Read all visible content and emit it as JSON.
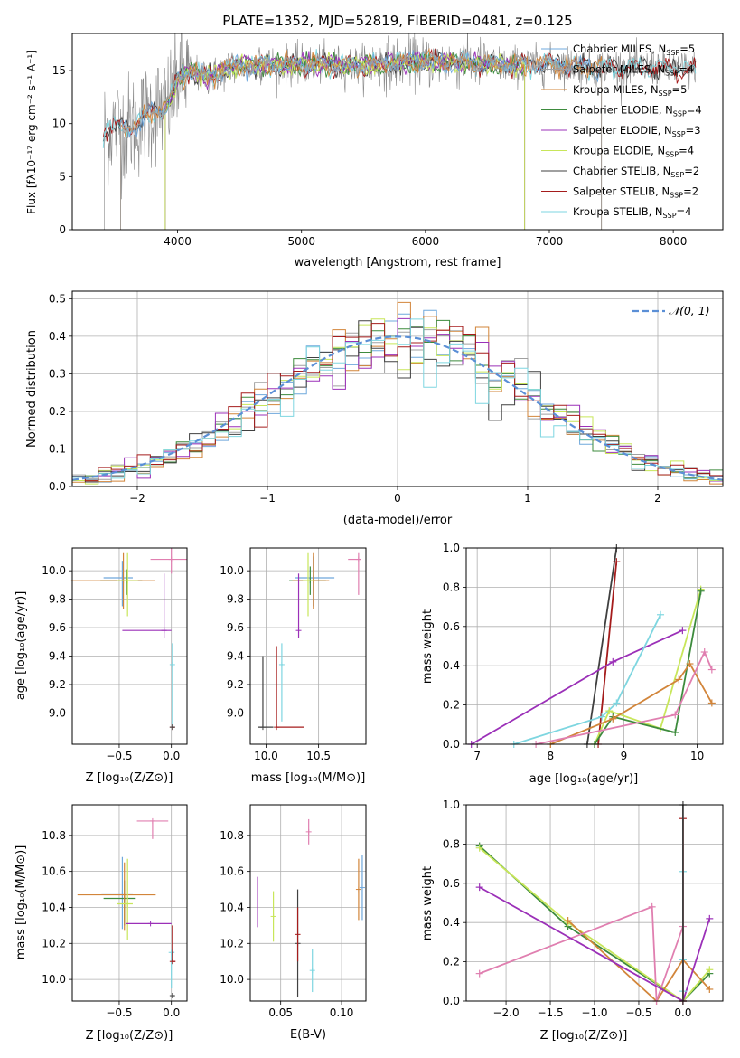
{
  "figure": {
    "title": "PLATE=1352, MJD=52819, FIBERID=0481, z=0.125"
  },
  "colors": {
    "model_series": [
      "#6fa8dc",
      "#a0a0a0",
      "#d2853a",
      "#3d8b3d",
      "#9b30b8",
      "#c8e65a",
      "#404040",
      "#a51c1c",
      "#7ed6e0"
    ],
    "pink": "#e07fb0",
    "data_gray": "#888888",
    "normal_curve": "#5b8fd6"
  },
  "chart_data": [
    {
      "id": "spectrum",
      "type": "line",
      "xlabel": "wavelength [Angstrom, rest frame]",
      "ylabel": "Flux [fλ10⁻¹⁷ erg cm⁻² s⁻¹ A⁻¹]",
      "xlim": [
        3150,
        8400
      ],
      "ylim": [
        0,
        18.5
      ],
      "xticks": [
        4000,
        5000,
        6000,
        7000,
        8000
      ],
      "yticks": [
        0,
        5,
        10,
        15
      ],
      "legend_position": "top-right",
      "data_range": [
        3400,
        8180
      ],
      "anchors": [
        [
          3400,
          9.3
        ],
        [
          3500,
          9.8
        ],
        [
          3600,
          9.6
        ],
        [
          3700,
          10.2
        ],
        [
          3800,
          11.2
        ],
        [
          3900,
          11.5
        ],
        [
          3950,
          12.5
        ],
        [
          4000,
          14.2
        ],
        [
          4100,
          15.0
        ],
        [
          4200,
          14.5
        ],
        [
          4300,
          14.5
        ],
        [
          4400,
          15.2
        ],
        [
          4500,
          15.4
        ],
        [
          4700,
          15.6
        ],
        [
          4900,
          15.5
        ],
        [
          5100,
          15.6
        ],
        [
          5300,
          15.5
        ],
        [
          5600,
          15.6
        ],
        [
          5900,
          15.8
        ],
        [
          6200,
          15.8
        ],
        [
          6500,
          15.6
        ],
        [
          6800,
          15.5
        ],
        [
          7100,
          15.6
        ],
        [
          7400,
          15.3
        ],
        [
          7700,
          15.3
        ],
        [
          8000,
          15.2
        ],
        [
          8180,
          15.1
        ]
      ],
      "legend": [
        {
          "label": "Chabrier MILES, N",
          "sub": "SSP",
          "suffix": "=5"
        },
        {
          "label": "Salpeter MILES, N",
          "sub": "SSP",
          "suffix": "=4"
        },
        {
          "label": "Kroupa MILES, N",
          "sub": "SSP",
          "suffix": "=5"
        },
        {
          "label": "Chabrier ELODIE, N",
          "sub": "SSP",
          "suffix": "=4"
        },
        {
          "label": "Salpeter ELODIE, N",
          "sub": "SSP",
          "suffix": "=3"
        },
        {
          "label": "Kroupa ELODIE, N",
          "sub": "SSP",
          "suffix": "=4"
        },
        {
          "label": "Chabrier STELIB, N",
          "sub": "SSP",
          "suffix": "=2"
        },
        {
          "label": "Salpeter STELIB, N",
          "sub": "SSP",
          "suffix": "=2"
        },
        {
          "label": "Kroupa STELIB, N",
          "sub": "SSP",
          "suffix": "=4"
        }
      ],
      "series": [
        {
          "name": "Chabrier MILES, NSSP=5",
          "start": 3540,
          "end": 7420
        },
        {
          "name": "Salpeter MILES, NSSP=4",
          "start": 3540,
          "end": 7420
        },
        {
          "name": "Kroupa MILES, NSSP=5",
          "start": 3540,
          "end": 7420
        },
        {
          "name": "Chabrier ELODIE, NSSP=4",
          "start": 3900,
          "end": 6800
        },
        {
          "name": "Salpeter ELODIE, NSSP=3",
          "start": 3900,
          "end": 6800
        },
        {
          "name": "Kroupa ELODIE, NSSP=4",
          "start": 3900,
          "end": 6800
        },
        {
          "name": "Chabrier STELIB, NSSP=2",
          "start": 3400,
          "end": 8180
        },
        {
          "name": "Salpeter STELIB, NSSP=2",
          "start": 3400,
          "end": 8180
        },
        {
          "name": "Kroupa STELIB, NSSP=4",
          "start": 3400,
          "end": 8180
        }
      ]
    },
    {
      "id": "residuals",
      "type": "line",
      "xlabel": "(data-model)/error",
      "ylabel": "Normed distribution",
      "xlim": [
        -2.5,
        2.5
      ],
      "ylim": [
        0,
        0.52
      ],
      "xticks": [
        -2,
        -1,
        0,
        1,
        2
      ],
      "yticks": [
        0.0,
        0.1,
        0.2,
        0.3,
        0.4,
        0.5
      ],
      "legend": "𝒩(0, 1)",
      "legend_position": "top-right",
      "bin_width": 0.1
    },
    {
      "id": "age-vs-Z",
      "type": "scatter",
      "xlabel": "Z [log₁₀(Z/Z⊙)]",
      "ylabel": "age  [log₁₀(age/yr)]",
      "xlim": [
        -0.95,
        0.15
      ],
      "ylim": [
        8.78,
        10.16
      ],
      "xticks": [
        -0.5,
        0.0
      ],
      "yticks": [
        9.0,
        9.2,
        9.4,
        9.6,
        9.8,
        10.0
      ],
      "points": [
        {
          "c": 0,
          "x": -0.47,
          "y": 9.95,
          "xe": [
            0.18,
            0.1
          ],
          "ye": [
            0.2,
            0.12
          ]
        },
        {
          "c": 3,
          "x": -0.43,
          "y": 9.93,
          "xe": [
            0.25,
            0.15
          ],
          "ye": [
            0.1,
            0.08
          ]
        },
        {
          "c": 2,
          "x": -0.46,
          "y": 9.93,
          "xe": [
            0.5,
            0.3
          ],
          "ye": [
            0.2,
            0.2
          ]
        },
        {
          "c": 5,
          "x": -0.42,
          "y": 9.93,
          "xe": [
            0.1,
            0.1
          ],
          "ye": [
            0.25,
            0.2
          ]
        },
        {
          "c": 4,
          "x": -0.07,
          "y": 9.58,
          "xe": [
            0.4,
            0.07
          ],
          "ye": [
            0.05,
            0.4
          ]
        },
        {
          "c": 9,
          "x": 0.0,
          "y": 10.08,
          "xe": [
            0.2,
            0.15
          ],
          "ye": [
            0.1,
            0.08
          ]
        },
        {
          "c": 8,
          "x": 0.01,
          "y": 9.34,
          "xe": [
            0.0,
            0.01
          ],
          "ye": [
            0.44,
            0.15
          ]
        },
        {
          "c": 7,
          "x": 0.01,
          "y": 8.9,
          "xe": [
            0.0,
            0.02
          ],
          "ye": [
            0.0,
            0.0
          ]
        },
        {
          "c": 6,
          "x": 0.01,
          "y": 8.9,
          "xe": [
            0.0,
            0.01
          ],
          "ye": [
            0.0,
            0.0
          ]
        }
      ]
    },
    {
      "id": "age-vs-mass",
      "type": "scatter",
      "xlabel": "mass [log₁₀(M/M⊙)]",
      "xlim": [
        9.85,
        10.95
      ],
      "ylim": [
        8.78,
        10.16
      ],
      "xticks": [
        10.0,
        10.5
      ],
      "yticks": [
        9.0,
        9.2,
        9.4,
        9.6,
        9.8,
        10.0
      ],
      "points": [
        {
          "c": 0,
          "x": 10.45,
          "y": 9.95,
          "xe": [
            0.17,
            0.2
          ],
          "ye": [
            0.2,
            0.15
          ]
        },
        {
          "c": 3,
          "x": 10.42,
          "y": 9.93,
          "xe": [
            0.2,
            0.15
          ],
          "ye": [
            0.1,
            0.1
          ]
        },
        {
          "c": 2,
          "x": 10.45,
          "y": 9.93,
          "xe": [
            0.2,
            0.15
          ],
          "ye": [
            0.2,
            0.2
          ]
        },
        {
          "c": 5,
          "x": 10.4,
          "y": 9.93,
          "xe": [
            0.05,
            0.05
          ],
          "ye": [
            0.25,
            0.2
          ]
        },
        {
          "c": 4,
          "x": 10.31,
          "y": 9.58,
          "xe": [
            0.0,
            0.0
          ],
          "ye": [
            0.05,
            0.4
          ]
        },
        {
          "c": 9,
          "x": 10.88,
          "y": 10.08,
          "xe": [
            0.1,
            0.02
          ],
          "ye": [
            0.25,
            0.05
          ]
        },
        {
          "c": 8,
          "x": 10.15,
          "y": 9.34,
          "xe": [
            0.0,
            0.01
          ],
          "ye": [
            0.4,
            0.15
          ]
        },
        {
          "c": 7,
          "x": 10.1,
          "y": 8.9,
          "xe": [
            0.0,
            0.26
          ],
          "ye": [
            0.0,
            0.57
          ]
        },
        {
          "c": 6,
          "x": 9.97,
          "y": 8.9,
          "xe": [
            0.05,
            0.1
          ],
          "ye": [
            0.0,
            0.5
          ]
        }
      ]
    },
    {
      "id": "mass-weight-vs-age",
      "type": "line",
      "xlabel": "age  [log₁₀(age/yr)]",
      "ylabel": "mass weight",
      "xlim": [
        6.85,
        10.35
      ],
      "ylim": [
        0.0,
        1.0
      ],
      "xticks": [
        7,
        8,
        9,
        10
      ],
      "yticks": [
        0.0,
        0.2,
        0.4,
        0.6,
        0.8,
        1.0
      ],
      "series": [
        {
          "c": 6,
          "pts": [
            [
              8.5,
              0.0
            ],
            [
              8.9,
              1.0
            ]
          ]
        },
        {
          "c": 7,
          "pts": [
            [
              8.65,
              0.0
            ],
            [
              8.9,
              0.93
            ]
          ]
        },
        {
          "c": 4,
          "pts": [
            [
              6.92,
              0.0
            ],
            [
              8.85,
              0.42
            ],
            [
              9.8,
              0.58
            ]
          ]
        },
        {
          "c": 8,
          "pts": [
            [
              7.5,
              0.0
            ],
            [
              8.7,
              0.14
            ],
            [
              8.9,
              0.21
            ],
            [
              9.5,
              0.66
            ]
          ]
        },
        {
          "c": 5,
          "pts": [
            [
              8.6,
              0.0
            ],
            [
              8.8,
              0.17
            ],
            [
              9.5,
              0.08
            ],
            [
              10.05,
              0.79
            ]
          ]
        },
        {
          "c": 3,
          "pts": [
            [
              8.6,
              0.0
            ],
            [
              8.85,
              0.14
            ],
            [
              9.7,
              0.06
            ],
            [
              10.05,
              0.78
            ]
          ]
        },
        {
          "c": 2,
          "pts": [
            [
              8.0,
              0.0
            ],
            [
              8.85,
              0.13
            ],
            [
              9.75,
              0.33
            ],
            [
              9.9,
              0.41
            ],
            [
              10.2,
              0.21
            ]
          ]
        },
        {
          "c": 9,
          "pts": [
            [
              7.8,
              0.0
            ],
            [
              9.7,
              0.15
            ],
            [
              10.1,
              0.47
            ],
            [
              10.2,
              0.38
            ]
          ]
        }
      ]
    },
    {
      "id": "mass-vs-Z",
      "type": "scatter",
      "xlabel": "Z [log₁₀(Z/Z⊙)]",
      "ylabel": "mass [log₁₀(M/M⊙)]",
      "xlim": [
        -0.95,
        0.15
      ],
      "ylim": [
        9.88,
        10.97
      ],
      "xticks": [
        -0.5,
        0.0
      ],
      "yticks": [
        10.0,
        10.2,
        10.4,
        10.6,
        10.8
      ],
      "points": [
        {
          "c": 0,
          "x": -0.47,
          "y": 10.48,
          "xe": [
            0.2,
            0.1
          ],
          "ye": [
            0.2,
            0.2
          ]
        },
        {
          "c": 3,
          "x": -0.45,
          "y": 10.45,
          "xe": [
            0.2,
            0.1
          ],
          "ye": [
            0.15,
            0.1
          ]
        },
        {
          "c": 2,
          "x": -0.45,
          "y": 10.47,
          "xe": [
            0.45,
            0.3
          ],
          "ye": [
            0.2,
            0.18
          ]
        },
        {
          "c": 5,
          "x": -0.42,
          "y": 10.42,
          "xe": [
            0.1,
            0.05
          ],
          "ye": [
            0.2,
            0.25
          ]
        },
        {
          "c": 4,
          "x": -0.2,
          "y": 10.31,
          "xe": [
            0.23,
            0.2
          ],
          "ye": [
            0.0,
            0.0
          ]
        },
        {
          "c": 9,
          "x": -0.18,
          "y": 10.88,
          "xe": [
            0.15,
            0.15
          ],
          "ye": [
            0.1,
            0.0
          ]
        },
        {
          "c": 8,
          "x": 0.0,
          "y": 10.15,
          "xe": [
            0.0,
            0.03
          ],
          "ye": [
            0.2,
            0.0
          ]
        },
        {
          "c": 7,
          "x": 0.01,
          "y": 10.1,
          "xe": [
            0.0,
            0.03
          ],
          "ye": [
            0.0,
            0.2
          ]
        },
        {
          "c": 6,
          "x": 0.01,
          "y": 9.91,
          "xe": [
            0.0,
            0.02
          ],
          "ye": [
            0.0,
            0.0
          ]
        }
      ]
    },
    {
      "id": "mass-vs-EBV",
      "type": "scatter",
      "xlabel": "E(B-V)",
      "xlim": [
        0.025,
        0.12
      ],
      "ylim": [
        9.88,
        10.97
      ],
      "xticks": [
        0.05,
        0.1
      ],
      "yticks": [
        10.0,
        10.2,
        10.4,
        10.6,
        10.8
      ],
      "points": [
        {
          "c": 4,
          "x": 0.031,
          "y": 10.43,
          "ye": [
            0.14,
            0.14
          ]
        },
        {
          "c": 5,
          "x": 0.044,
          "y": 10.35,
          "ye": [
            0.14,
            0.14
          ]
        },
        {
          "c": 6,
          "x": 0.064,
          "y": 10.2,
          "ye": [
            0.3,
            0.3
          ]
        },
        {
          "c": 7,
          "x": 0.064,
          "y": 10.25,
          "ye": [
            0.15,
            0.15
          ]
        },
        {
          "c": 9,
          "x": 0.073,
          "y": 10.82,
          "ye": [
            0.07,
            0.07
          ]
        },
        {
          "c": 8,
          "x": 0.076,
          "y": 10.05,
          "ye": [
            0.12,
            0.12
          ]
        },
        {
          "c": 2,
          "x": 0.114,
          "y": 10.5,
          "ye": [
            0.17,
            0.17
          ]
        },
        {
          "c": 0,
          "x": 0.117,
          "y": 10.51,
          "ye": [
            0.18,
            0.18
          ]
        }
      ]
    },
    {
      "id": "mass-weight-vs-Z",
      "type": "line",
      "xlabel": "Z [log₁₀(Z/Z⊙)]",
      "ylabel": "mass weight",
      "xlim": [
        -2.45,
        0.45
      ],
      "ylim": [
        0.0,
        1.0
      ],
      "xticks": [
        -2.0,
        -1.5,
        -1.0,
        -0.5,
        0.0
      ],
      "yticks": [
        0.0,
        0.2,
        0.4,
        0.6,
        0.8,
        1.0
      ],
      "series": [
        {
          "c": 3,
          "pts": [
            [
              -2.3,
              0.79
            ],
            [
              -1.3,
              0.38
            ],
            [
              0.0,
              0.0
            ],
            [
              0.3,
              0.14
            ]
          ]
        },
        {
          "c": 5,
          "pts": [
            [
              -2.3,
              0.78
            ],
            [
              -1.3,
              0.4
            ],
            [
              0.0,
              0.0
            ],
            [
              0.3,
              0.16
            ]
          ]
        },
        {
          "c": 2,
          "pts": [
            [
              -1.3,
              0.41
            ],
            [
              -0.3,
              0.0
            ],
            [
              0.0,
              0.21
            ],
            [
              0.3,
              0.06
            ]
          ]
        },
        {
          "c": 9,
          "pts": [
            [
              -2.3,
              0.14
            ],
            [
              -0.35,
              0.48
            ],
            [
              -0.3,
              0.0
            ],
            [
              0.0,
              0.38
            ],
            [
              0.0,
              0.0
            ]
          ]
        },
        {
          "c": 4,
          "pts": [
            [
              -2.3,
              0.58
            ],
            [
              0.0,
              0.0
            ],
            [
              0.3,
              0.42
            ]
          ]
        },
        {
          "c": 8,
          "pts": [
            [
              0.0,
              0.66
            ],
            [
              0.0,
              0.05
            ],
            [
              0.0,
              0.21
            ]
          ]
        },
        {
          "c": 7,
          "pts": [
            [
              0.0,
              0.93
            ],
            [
              0.0,
              0.0
            ]
          ]
        },
        {
          "c": 6,
          "pts": [
            [
              0.0,
              1.0
            ],
            [
              0.0,
              0.0
            ]
          ]
        }
      ]
    }
  ]
}
